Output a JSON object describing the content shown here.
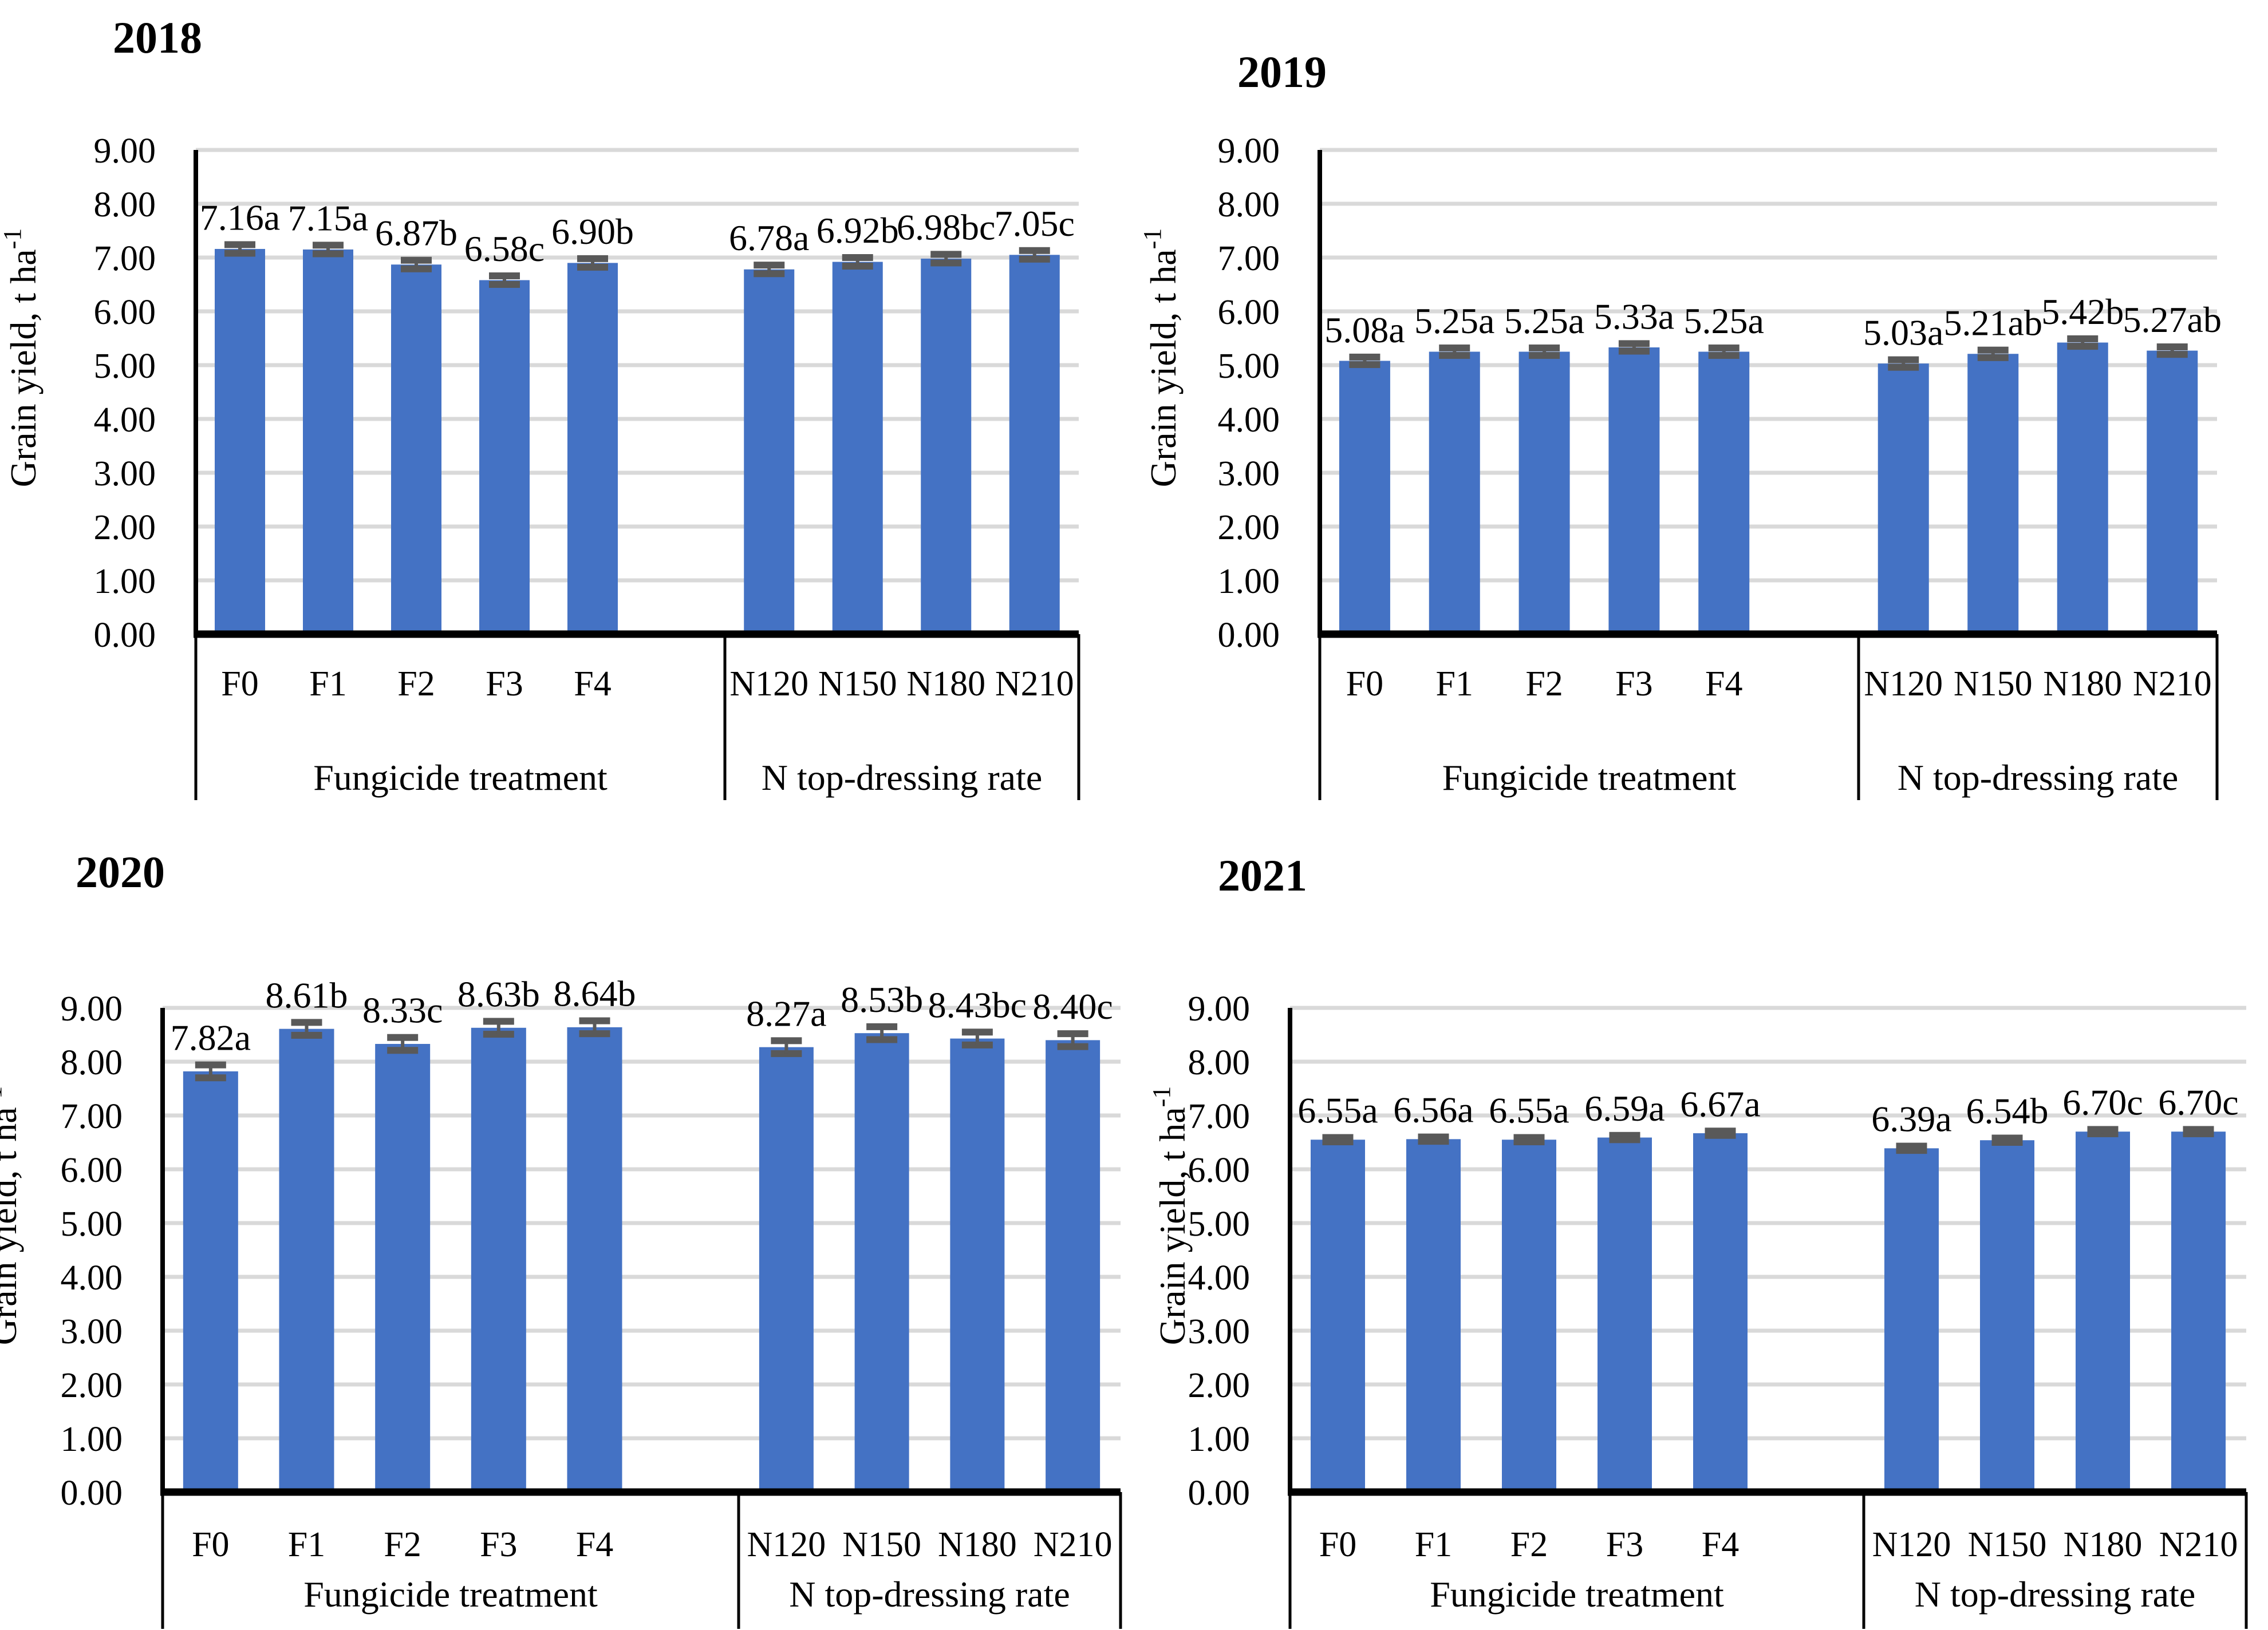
{
  "figure": {
    "description_colors": {
      "bar": "#4472C4",
      "error_bar": "#595959",
      "gridline": "#D9D9D9",
      "axis": "#000000",
      "background": "#FFFFFF"
    }
  },
  "y_axis": {
    "title_text": "Grain yield, t ha",
    "title_superscript": "-1",
    "title_full": "Grain yield, t ha⁻¹",
    "tick_labels": [
      "0.00",
      "1.00",
      "2.00",
      "3.00",
      "4.00",
      "5.00",
      "6.00",
      "7.00",
      "8.00",
      "9.00"
    ],
    "min": 0,
    "max": 9,
    "step": 1
  },
  "chart_data": [
    {
      "type": "bar",
      "title": "2018",
      "ylabel": "Grain yield, t ha⁻¹",
      "ylim": [
        0,
        9
      ],
      "grid": true,
      "error_bar_size": 0.08,
      "groups": [
        {
          "label": "Fungicide treatment",
          "categories": [
            "F0",
            "F1",
            "F2",
            "F3",
            "F4"
          ],
          "values": [
            7.16,
            7.15,
            6.87,
            6.58,
            6.9
          ],
          "bar_labels": [
            "7.16a",
            "7.15a",
            "6.87b",
            "6.58c",
            "6.90b"
          ]
        },
        {
          "label": "N top-dressing rate",
          "categories": [
            "N120",
            "N150",
            "N180",
            "N210"
          ],
          "values": [
            6.78,
            6.92,
            6.98,
            7.05
          ],
          "bar_labels": [
            "6.78a",
            "6.92b",
            "6.98bc",
            "7.05c"
          ]
        }
      ]
    },
    {
      "type": "bar",
      "title": "2019",
      "ylabel": "Grain yield, t ha⁻¹",
      "ylim": [
        0,
        9
      ],
      "grid": true,
      "error_bar_size": 0.07,
      "groups": [
        {
          "label": "Fungicide treatment",
          "categories": [
            "F0",
            "F1",
            "F2",
            "F3",
            "F4"
          ],
          "values": [
            5.08,
            5.25,
            5.25,
            5.33,
            5.25
          ],
          "bar_labels": [
            "5.08a",
            "5.25a",
            "5.25a",
            "5.33a",
            "5.25a"
          ]
        },
        {
          "label": "N top-dressing rate",
          "categories": [
            "N120",
            "N150",
            "N180",
            "N210"
          ],
          "values": [
            5.03,
            5.21,
            5.42,
            5.27
          ],
          "bar_labels": [
            "5.03a",
            "5.21ab",
            "5.42b",
            "5.27ab"
          ]
        }
      ]
    },
    {
      "type": "bar",
      "title": "2020",
      "ylabel": "Grain yield, t ha⁻¹",
      "ylim": [
        0,
        9
      ],
      "grid": true,
      "error_bar_size": 0.12,
      "groups": [
        {
          "label": "Fungicide treatment",
          "categories": [
            "F0",
            "F1",
            "F2",
            "F3",
            "F4"
          ],
          "values": [
            7.82,
            8.61,
            8.33,
            8.63,
            8.64
          ],
          "bar_labels": [
            "7.82a",
            "8.61b",
            "8.33c",
            "8.63b",
            "8.64b"
          ]
        },
        {
          "label": "N top-dressing rate",
          "categories": [
            "N120",
            "N150",
            "N180",
            "N210"
          ],
          "values": [
            8.27,
            8.53,
            8.43,
            8.4
          ],
          "bar_labels": [
            "8.27a",
            "8.53b",
            "8.43bc",
            "8.40c"
          ]
        }
      ]
    },
    {
      "type": "bar",
      "title": "2021",
      "ylabel": "Grain yield, t ha⁻¹",
      "ylim": [
        0,
        9
      ],
      "grid": true,
      "error_bar_size": 0.04,
      "groups": [
        {
          "label": "Fungicide treatment",
          "categories": [
            "F0",
            "F1",
            "F2",
            "F3",
            "F4"
          ],
          "values": [
            6.55,
            6.56,
            6.55,
            6.59,
            6.67
          ],
          "bar_labels": [
            "6.55a",
            "6.56a",
            "6.55a",
            "6.59a",
            "6.67a"
          ]
        },
        {
          "label": "N top-dressing rate",
          "categories": [
            "N120",
            "N150",
            "N180",
            "N210"
          ],
          "values": [
            6.39,
            6.54,
            6.7,
            6.7
          ],
          "bar_labels": [
            "6.39a",
            "6.54b",
            "6.70c",
            "6.70c"
          ]
        }
      ]
    }
  ]
}
